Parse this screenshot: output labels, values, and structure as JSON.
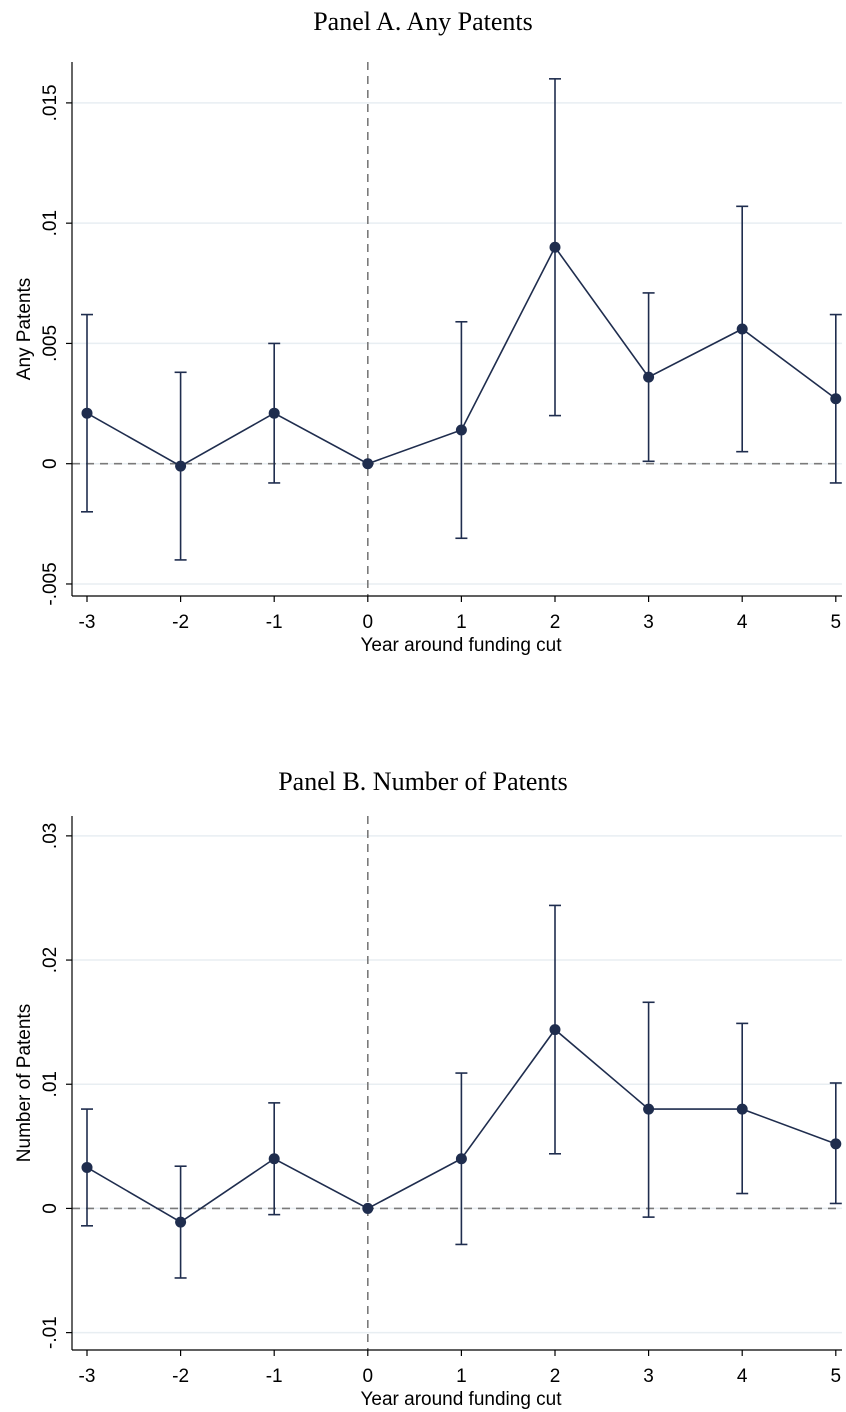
{
  "chart_data": [
    {
      "type": "line",
      "title": "Panel A. Any Patents",
      "xlabel": "Year around funding cut",
      "ylabel": "Any Patents",
      "x": [
        -3,
        -2,
        -1,
        0,
        1,
        2,
        3,
        4,
        5
      ],
      "xticks": [
        "-3",
        "-2",
        "-1",
        "0",
        "1",
        "2",
        "3",
        "4",
        "5"
      ],
      "xlim": [
        -3,
        5
      ],
      "yticks": [
        -0.005,
        0,
        0.005,
        0.01,
        0.015
      ],
      "ytick_labels": [
        "-.005",
        "0",
        ".005",
        ".01",
        ".015"
      ],
      "ylim": [
        -0.0055,
        0.0167
      ],
      "series": [
        {
          "values": [
            0.0021,
            -0.0001,
            0.0021,
            0.0,
            0.0014,
            0.009,
            0.0036,
            0.0056,
            0.0027
          ],
          "ci_low": [
            -0.002,
            -0.004,
            -0.0008,
            0.0,
            -0.0031,
            0.002,
            0.0001,
            0.0005,
            -0.0008
          ],
          "ci_high": [
            0.0062,
            0.0038,
            0.005,
            0.0,
            0.0059,
            0.016,
            0.0071,
            0.0107,
            0.0062
          ]
        }
      ],
      "reference_lines": {
        "x": 0,
        "y": 0
      },
      "grid": true,
      "colors": {
        "series": "#1f2d4e",
        "reference": "#7a7a7a",
        "grid": "#e8eef2"
      }
    },
    {
      "type": "line",
      "title": "Panel B. Number of Patents",
      "xlabel": "Year around funding cut",
      "ylabel": "Number of Patents",
      "x": [
        -3,
        -2,
        -1,
        0,
        1,
        2,
        3,
        4,
        5
      ],
      "xticks": [
        "-3",
        "-2",
        "-1",
        "0",
        "1",
        "2",
        "3",
        "4",
        "5"
      ],
      "xlim": [
        -3,
        5
      ],
      "yticks": [
        -0.01,
        0,
        0.01,
        0.02,
        0.03
      ],
      "ytick_labels": [
        "-.01",
        "0",
        ".01",
        ".02",
        ".03"
      ],
      "ylim": [
        -0.0114,
        0.0316
      ],
      "series": [
        {
          "values": [
            0.0033,
            -0.0011,
            0.004,
            0.0,
            0.004,
            0.0144,
            0.008,
            0.008,
            0.0052
          ],
          "ci_low": [
            -0.0014,
            -0.0056,
            -0.0005,
            0.0,
            -0.0029,
            0.0044,
            -0.0007,
            0.0012,
            0.0004
          ],
          "ci_high": [
            0.008,
            0.0034,
            0.0085,
            0.0,
            0.0109,
            0.0244,
            0.0166,
            0.0149,
            0.0101
          ]
        }
      ],
      "reference_lines": {
        "x": 0,
        "y": 0
      },
      "grid": true,
      "colors": {
        "series": "#1f2d4e",
        "reference": "#7a7a7a",
        "grid": "#e8eef2"
      }
    }
  ]
}
